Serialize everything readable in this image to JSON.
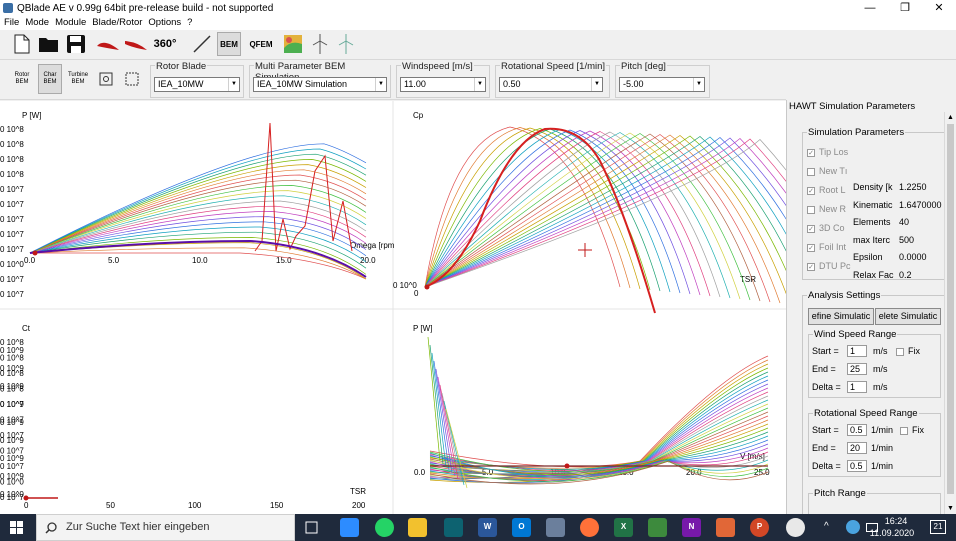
{
  "window": {
    "title": "QBlade AE v 0.99g 64bit pre-release build - not supported",
    "minimize": "—",
    "restore": "❐",
    "close": "✕"
  },
  "menu": [
    "File",
    "Mode",
    "Module",
    "Blade/Rotor",
    "Options",
    "?"
  ],
  "toolbar": {
    "icons": [
      "new-file-icon",
      "open-folder-icon",
      "save-icon",
      "airfoil-icon",
      "blade-icon",
      "view-360-icon",
      "line-icon",
      "bem-icon",
      "qfem-icon",
      "map-icon",
      "turbine-icon",
      "turbine2-icon"
    ],
    "view360_label": "360°",
    "bem_label": "BEM",
    "qfem_label": "QFEM"
  },
  "toolbar2": {
    "rotor_bem": "Rotor BEM",
    "char_bem": "Char BEM",
    "turbine_bem": "Turbine BEM"
  },
  "selectors": {
    "rotor_blade": {
      "label": "Rotor Blade",
      "value": "IEA_10MW"
    },
    "simulation": {
      "label": "Multi Parameter BEM Simulation",
      "value": "IEA_10MW Simulation"
    },
    "windspeed": {
      "label": "Windspeed [m/s]",
      "value": "11.00"
    },
    "rotspeed": {
      "label": "Rotational Speed [1/min]",
      "value": "0.50"
    },
    "pitch": {
      "label": "Pitch [deg]",
      "value": "-5.00"
    }
  },
  "plots": {
    "p_omega": {
      "ylabel": "P [W]",
      "xlabel": "Omega [rpm",
      "xticks": [
        "0.0",
        "5.0",
        "10.0",
        "15.0",
        "20.0"
      ],
      "yticks": [
        "0 10^8",
        "0 10^8",
        "0 10^8",
        "0 10^8",
        "0 10^7",
        "0 10^7",
        "0 10^7",
        "0 10^7",
        "0 10^7",
        "0 10^0",
        "0 10^7",
        "0 10^7"
      ]
    },
    "cp_tsr": {
      "ylabel": "Cp",
      "xlabel": "TSR",
      "yticks": [
        "0 10^0"
      ],
      "xticks": [
        "0"
      ]
    },
    "ct_tsr": {
      "ylabel": "Ct",
      "xlabel": "TSR",
      "xticks": [
        "0",
        "50",
        "100",
        "150",
        "200"
      ],
      "yticks": [
        "0 10^9",
        "0 10^9",
        "0 10^9",
        "0 10^9",
        "0 10^9",
        "0 10^9",
        "0 10^9",
        "0 10^9",
        "0 10^0"
      ]
    },
    "p_v": {
      "ylabel": "P [W]",
      "xlabel": "V [m/s]",
      "xticks": [
        "0.0",
        "5.0",
        "10.0",
        "15.0",
        "20.0",
        "25.0"
      ],
      "yticks": [
        "0 10^8",
        "0 10^8",
        "0 10^8",
        "0 10^8",
        "0 10^7",
        "0 10^7",
        "0 10^7",
        "0 10^7",
        "0 10^7",
        "0 10^0",
        "0 10^7"
      ]
    }
  },
  "right_panel": {
    "title": "HAWT Simulation Parameters",
    "sim_params": {
      "legend": "Simulation Parameters",
      "checks": [
        "Tip Los",
        "New Tı",
        "Root L",
        "New R",
        "3D Co",
        "Foil Int",
        "DTU Pc"
      ],
      "checked": [
        true,
        false,
        true,
        false,
        true,
        true,
        true
      ],
      "params": [
        {
          "k": "Density [k",
          "v": "1.2250"
        },
        {
          "k": "Kinematic",
          "v": "1.6470000"
        },
        {
          "k": "Elements",
          "v": "40"
        },
        {
          "k": "max Iterc",
          "v": "500"
        },
        {
          "k": "Epsilon",
          "v": "0.0000"
        },
        {
          "k": "Relax Fac",
          "v": "0.2"
        }
      ]
    },
    "analysis": {
      "legend": "Analysis Settings",
      "define_btn": "efine Simulatic",
      "delete_btn": "elete Simulatic",
      "wind": {
        "legend": "Wind Speed Range",
        "start_label": "Start =",
        "start": "1",
        "start_unit": "m/s",
        "fix": "Fix",
        "end_label": "End =",
        "end": "25",
        "end_unit": "m/s",
        "delta_label": "Delta =",
        "delta": "1",
        "delta_unit": "m/s"
      },
      "rot": {
        "legend": "Rotational Speed Range",
        "start_label": "Start =",
        "start": "0.5",
        "start_unit": "1/min",
        "fix": "Fix",
        "end_label": "End =",
        "end": "20",
        "end_unit": "1/min",
        "delta_label": "Delta =",
        "delta": "0.5",
        "delta_unit": "1/min"
      },
      "pitch": {
        "legend": "Pitch Range"
      }
    }
  },
  "taskbar": {
    "search_placeholder": "Zur Suche Text hier eingeben",
    "time": "16:24",
    "date": "11.09.2020",
    "notif": "21"
  }
}
